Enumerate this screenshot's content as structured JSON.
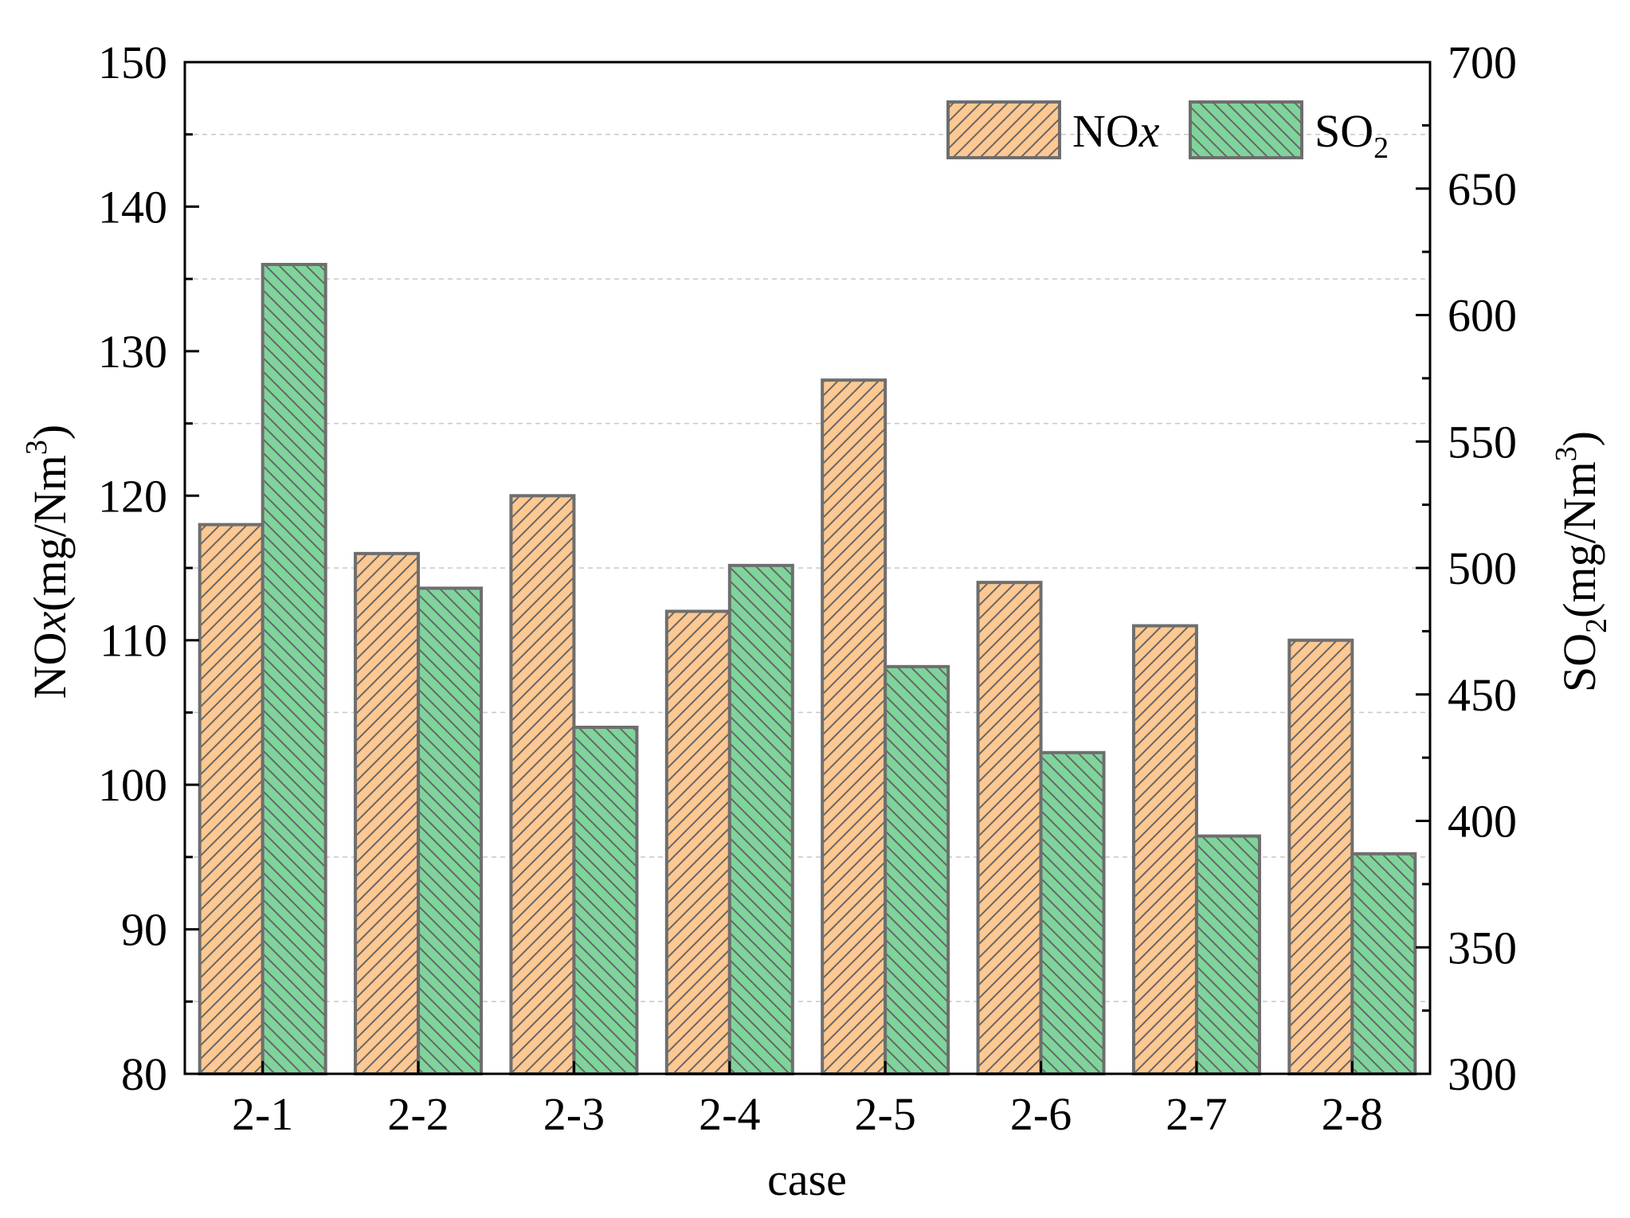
{
  "chart_data": {
    "type": "bar",
    "xlabel": "case",
    "categories": [
      "2-1",
      "2-2",
      "2-3",
      "2-4",
      "2-5",
      "2-6",
      "2-7",
      "2-8"
    ],
    "y_left": {
      "label_main": "NO",
      "label_italic": "x",
      "label_tail": "(mg/Nm",
      "label_sup": "3",
      "label_close": ")",
      "lim": [
        80,
        150
      ],
      "ticks": [
        80,
        90,
        100,
        110,
        120,
        130,
        140,
        150
      ],
      "tick_labels": [
        "80",
        "90",
        "100",
        "110",
        "120",
        "130",
        "140",
        "150"
      ]
    },
    "y_right": {
      "label_main": "SO",
      "label_sub": "2",
      "label_tail": "(mg/Nm",
      "label_sup": "3",
      "label_close": ")",
      "lim": [
        300,
        700
      ],
      "ticks": [
        300,
        350,
        400,
        450,
        500,
        550,
        600,
        650,
        700
      ],
      "tick_labels": [
        "300",
        "350",
        "400",
        "450",
        "500",
        "550",
        "600",
        "650",
        "700"
      ]
    },
    "grid": true,
    "legend_position": "top-right",
    "series": [
      {
        "name_main": "NO",
        "name_italic": "x",
        "axis": "left",
        "color": "#FDC891",
        "values": [
          118,
          116,
          120,
          112,
          128,
          114,
          111,
          110
        ]
      },
      {
        "name_main": "SO",
        "name_sub": "2",
        "axis": "right",
        "color": "#7FD49B",
        "values": [
          620,
          492,
          437,
          501,
          461,
          427,
          394,
          387
        ]
      }
    ],
    "colors": {
      "edge": "#6E6E6E",
      "hatch": "#666666",
      "grid": "#C8C8C8",
      "axis": "#000000"
    }
  }
}
